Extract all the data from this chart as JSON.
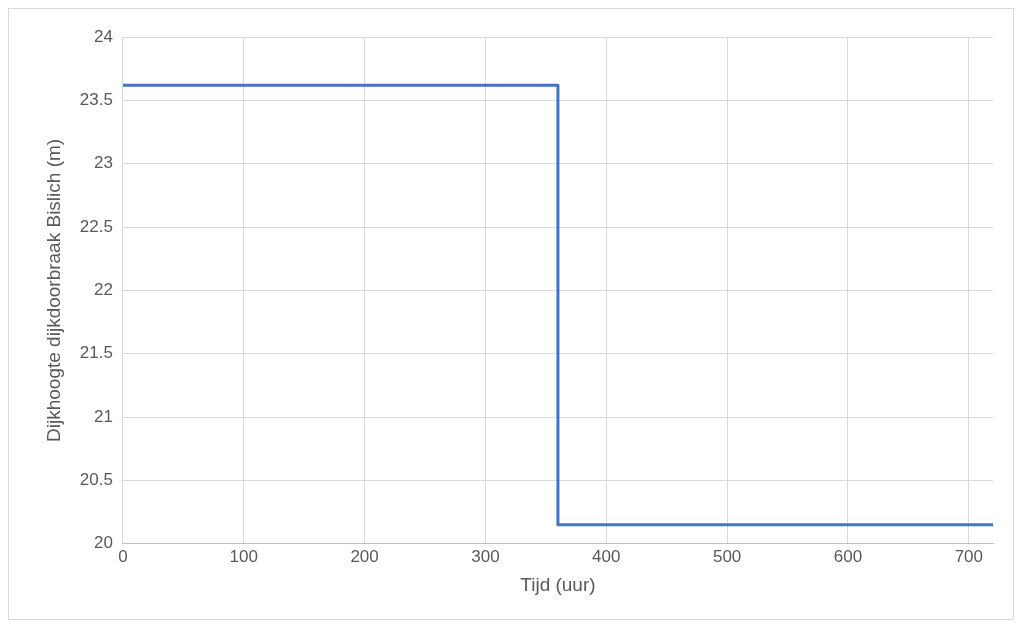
{
  "chart_data": {
    "type": "step",
    "xlabel": "Tijd (uur)",
    "ylabel": "Dijkhoogte dijkdoorbraak Bislich (m)",
    "x": [
      0,
      360,
      720
    ],
    "series": [
      {
        "color": "#4472c4",
        "values": [
          23.62,
          20.15,
          20.15
        ]
      }
    ],
    "xlim": [
      0,
      720
    ],
    "xticks": [
      0,
      100,
      200,
      300,
      400,
      500,
      600,
      700
    ],
    "ylim": [
      20,
      24
    ],
    "yticks": [
      20,
      20.5,
      21,
      21.5,
      22,
      22.5,
      23,
      23.5,
      24
    ],
    "grid": true,
    "legend": false,
    "marker": "none",
    "line_style": "solid"
  }
}
